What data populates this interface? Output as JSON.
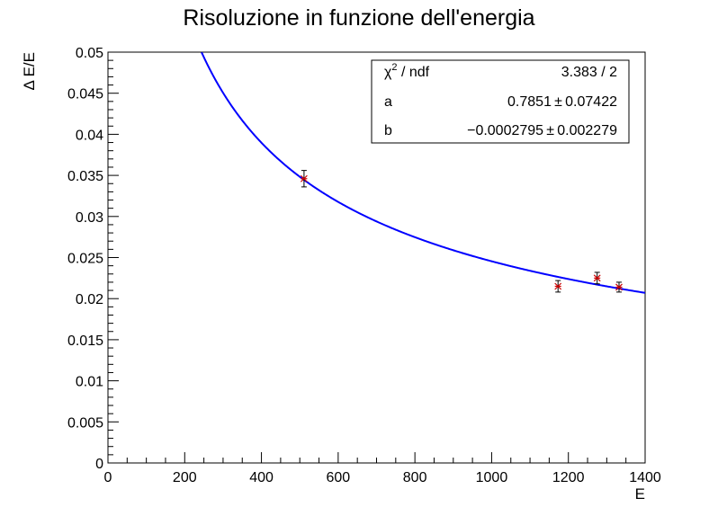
{
  "chart_data": {
    "type": "scatter",
    "title": "Risoluzione in funzione dell'energia",
    "xlabel": "E",
    "ylabel": "Δ E/E",
    "xlim": [
      0,
      1400
    ],
    "ylim": [
      0,
      0.05
    ],
    "x_ticks": [
      "0",
      "200",
      "400",
      "600",
      "800",
      "1000",
      "1200",
      "1400"
    ],
    "y_ticks": [
      "0",
      "0.005",
      "0.01",
      "0.015",
      "0.02",
      "0.025",
      "0.03",
      "0.035",
      "0.04",
      "0.045",
      "0.05"
    ],
    "grid": false,
    "points": [
      {
        "x": 511,
        "y": 0.0346,
        "yerr": 0.001
      },
      {
        "x": 1173,
        "y": 0.0215,
        "yerr": 0.0007
      },
      {
        "x": 1275,
        "y": 0.0225,
        "yerr": 0.0007
      },
      {
        "x": 1332,
        "y": 0.0214,
        "yerr": 0.0006
      }
    ],
    "fit": {
      "color": "#0000ff",
      "a": 0.7851,
      "b": -0.0002795
    },
    "stats_box": {
      "placement": "top-right",
      "rows": [
        {
          "label_main": "χ",
          "label_sup": "2",
          "label_rest": " / ndf",
          "value": "3.383 / 2"
        },
        {
          "label_main": "a",
          "label_sup": "",
          "label_rest": "",
          "value": "0.7851 ± 0.07422"
        },
        {
          "label_main": "b",
          "label_sup": "",
          "label_rest": "",
          "value": "−0.0002795 ± 0.002279"
        }
      ]
    },
    "marker_color": "#cc0000"
  }
}
